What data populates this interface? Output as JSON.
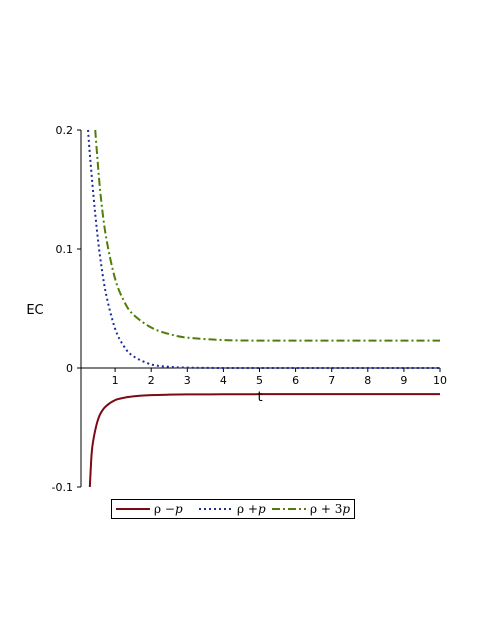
{
  "chart_data": {
    "type": "line",
    "title": "",
    "xlabel": "t",
    "ylabel": "EC",
    "xlim": [
      0,
      10
    ],
    "ylim": [
      -0.1,
      0.2
    ],
    "x_ticks": [
      "1",
      "2",
      "3",
      "4",
      "5",
      "6",
      "7",
      "8",
      "9",
      "10"
    ],
    "y_ticks": [
      "0.2",
      "0.1",
      "0",
      "-0.1"
    ],
    "legend_position": "bottom",
    "series": [
      {
        "name": "ρ − p",
        "color": "#7a0a14",
        "style": "solid",
        "x": [
          0.3,
          0.35,
          0.4,
          0.5,
          0.6,
          0.75,
          1.0,
          1.25,
          1.5,
          2.0,
          2.5,
          3.0,
          4.0,
          5.0,
          6.0,
          7.0,
          8.0,
          9.0,
          10.0
        ],
        "y": [
          -0.1,
          -0.072,
          -0.06,
          -0.046,
          -0.038,
          -0.032,
          -0.027,
          -0.025,
          -0.0238,
          -0.0228,
          -0.0224,
          -0.0222,
          -0.0221,
          -0.022,
          -0.022,
          -0.022,
          -0.022,
          -0.022,
          -0.022
        ]
      },
      {
        "name": "ρ + p",
        "color": "#1c2a9c",
        "style": "dotted",
        "x": [
          0.25,
          0.3,
          0.4,
          0.5,
          0.6,
          0.75,
          1.0,
          1.25,
          1.5,
          2.0,
          2.5,
          3.0,
          4.0,
          5.0,
          6.0,
          7.0,
          8.0,
          9.0,
          10.0
        ],
        "y": [
          0.2,
          0.18,
          0.145,
          0.115,
          0.09,
          0.062,
          0.033,
          0.018,
          0.01,
          0.003,
          0.001,
          0.0003,
          0.0,
          0.0,
          0.0,
          0.0,
          0.0,
          0.0,
          0.0
        ]
      },
      {
        "name": "ρ + 3 p",
        "color": "#4f7f0a",
        "style": "dashdot",
        "x": [
          0.45,
          0.5,
          0.6,
          0.75,
          1.0,
          1.25,
          1.5,
          2.0,
          2.5,
          3.0,
          4.0,
          5.0,
          6.0,
          7.0,
          8.0,
          9.0,
          10.0
        ],
        "y": [
          0.2,
          0.18,
          0.145,
          0.11,
          0.075,
          0.056,
          0.045,
          0.034,
          0.0285,
          0.0255,
          0.0235,
          0.023,
          0.023,
          0.023,
          0.023,
          0.023,
          0.023
        ]
      }
    ]
  },
  "legend": {
    "items": [
      {
        "prefix": "ρ − ",
        "var": "p"
      },
      {
        "prefix": "ρ + ",
        "var": "p"
      },
      {
        "prefix": "ρ + 3 ",
        "var": "p"
      }
    ]
  }
}
